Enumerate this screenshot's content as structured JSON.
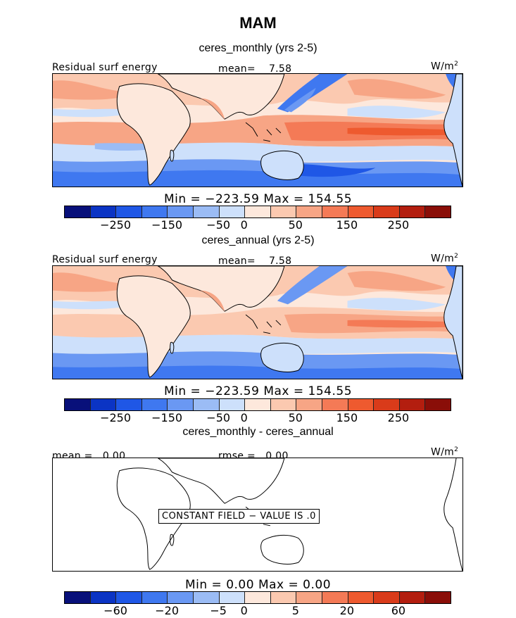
{
  "figure": {
    "season": "MAM",
    "palette": [
      "#08107a",
      "#0b34c4",
      "#1f57e6",
      "#3f78f0",
      "#6a98f3",
      "#9bbcf5",
      "#cde0fb",
      "#fde8dc",
      "#fbc9b0",
      "#f7a585",
      "#f47a56",
      "#ee5a2f",
      "#d93b1a",
      "#b31e0f",
      "#8a0e08"
    ]
  },
  "panels": [
    {
      "subtitle": "ceres_monthly (yrs 2-5)",
      "left_label": "Residual surf energy",
      "mean_label": "mean=",
      "mean_value": "7.58",
      "units": "W/m",
      "units_sup": "2",
      "min_max": "Min = −223.59 Max = 154.55",
      "colorbar_ticks": [
        "−250",
        "−150",
        "−50",
        "0",
        "50",
        "150",
        "250"
      ]
    },
    {
      "subtitle": "ceres_annual (yrs 2-5)",
      "left_label": "Residual surf energy",
      "mean_label": "mean=",
      "mean_value": "7.58",
      "units": "W/m",
      "units_sup": "2",
      "min_max": "Min = −223.59 Max = 154.55",
      "colorbar_ticks": [
        "−250",
        "−150",
        "−50",
        "0",
        "50",
        "150",
        "250"
      ]
    },
    {
      "subtitle": "ceres_monthly - ceres_annual",
      "mean_text": "mean = . 0.00",
      "rmse_text": "rmse = . 0.00",
      "units": "W/m",
      "units_sup": "2",
      "note": "CONSTANT FIELD − VALUE IS .0",
      "min_max": "Min = 0.00 Max = 0.00",
      "colorbar_ticks": [
        "−60",
        "−20",
        "−5",
        "0",
        "5",
        "20",
        "60"
      ]
    }
  ],
  "chart_data": [
    {
      "type": "heatmap",
      "title": "ceres_monthly (yrs 2-5)",
      "variable": "Residual surf energy",
      "units": "W/m2",
      "mean": 7.58,
      "min": -223.59,
      "max": 154.55,
      "colorbar_ticks": [
        -250,
        -150,
        -50,
        0,
        50,
        150,
        250
      ]
    },
    {
      "type": "heatmap",
      "title": "ceres_annual (yrs 2-5)",
      "variable": "Residual surf energy",
      "units": "W/m2",
      "mean": 7.58,
      "min": -223.59,
      "max": 154.55,
      "colorbar_ticks": [
        -250,
        -150,
        -50,
        0,
        50,
        150,
        250
      ]
    },
    {
      "type": "heatmap",
      "title": "ceres_monthly - ceres_annual",
      "units": "W/m2",
      "mean": 0.0,
      "rmse": 0.0,
      "min": 0.0,
      "max": 0.0,
      "colorbar_ticks": [
        -60,
        -20,
        -5,
        0,
        5,
        20,
        60
      ],
      "annotation": "CONSTANT FIELD - VALUE IS .0"
    }
  ]
}
